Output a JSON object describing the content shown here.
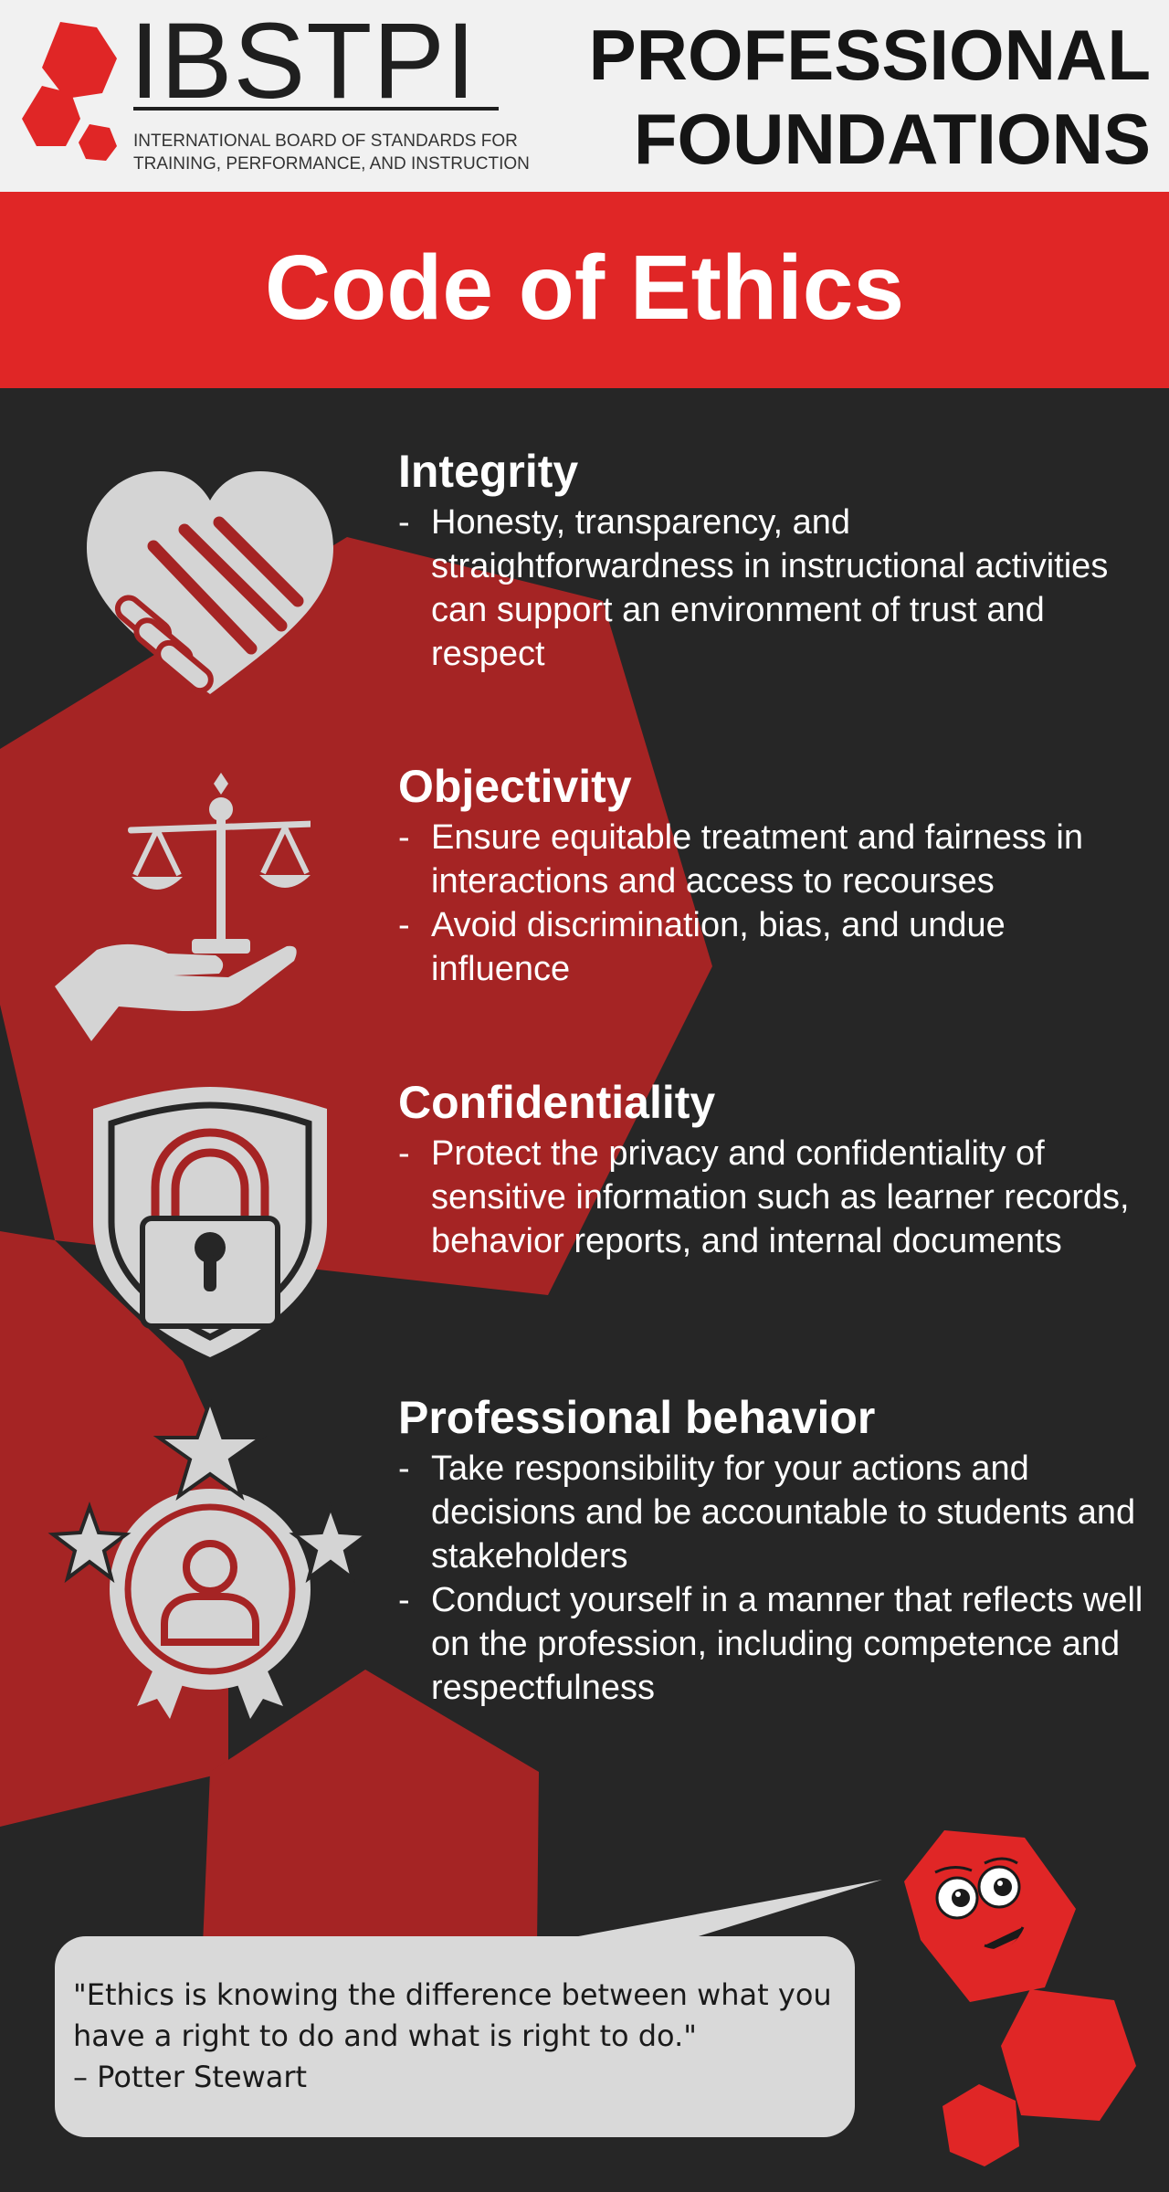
{
  "header": {
    "logo_text": "IBSTPI",
    "logo_subtitle_line1": "INTERNATIONAL BOARD OF STANDARDS FOR",
    "logo_subtitle_line2": "TRAINING, PERFORMANCE, AND INSTRUCTION",
    "title_line1": "PROFESSIONAL",
    "title_line2": "FOUNDATIONS"
  },
  "banner": {
    "title": "Code of Ethics"
  },
  "colors": {
    "accent_red": "#e02626",
    "dark_red": "#a52424",
    "background_dark": "#262626",
    "header_background": "#f1f1f1",
    "icon_gray": "#d4d4d4",
    "quote_box": "#d9d9d9"
  },
  "sections": [
    {
      "heading": "Integrity",
      "icon": "heart-handshake-icon",
      "bullets": [
        "Honesty, transparency, and straightforwardness in instructional activities can support an environment of trust and respect"
      ]
    },
    {
      "heading": "Objectivity",
      "icon": "scale-in-hand-icon",
      "bullets": [
        "Ensure equitable treatment and fairness in interactions and access to recourses",
        "Avoid discrimination, bias, and undue influence"
      ]
    },
    {
      "heading": "Confidentiality",
      "icon": "shield-padlock-icon",
      "bullets": [
        "Protect the privacy and confidentiality of sensitive information such as learner records, behavior reports, and internal documents"
      ]
    },
    {
      "heading": "Professional behavior",
      "icon": "award-person-stars-icon",
      "bullets": [
        "Take responsibility for your actions and decisions and be accountable to students and stakeholders",
        "Conduct yourself in a manner that reflects well on the profession, including competence and respectfulness"
      ]
    }
  ],
  "quote": {
    "text": "\"Ethics is knowing the difference between what you have a right to do and what is right to do.\"",
    "author": "– Potter Stewart"
  },
  "bullet_marker": "-"
}
